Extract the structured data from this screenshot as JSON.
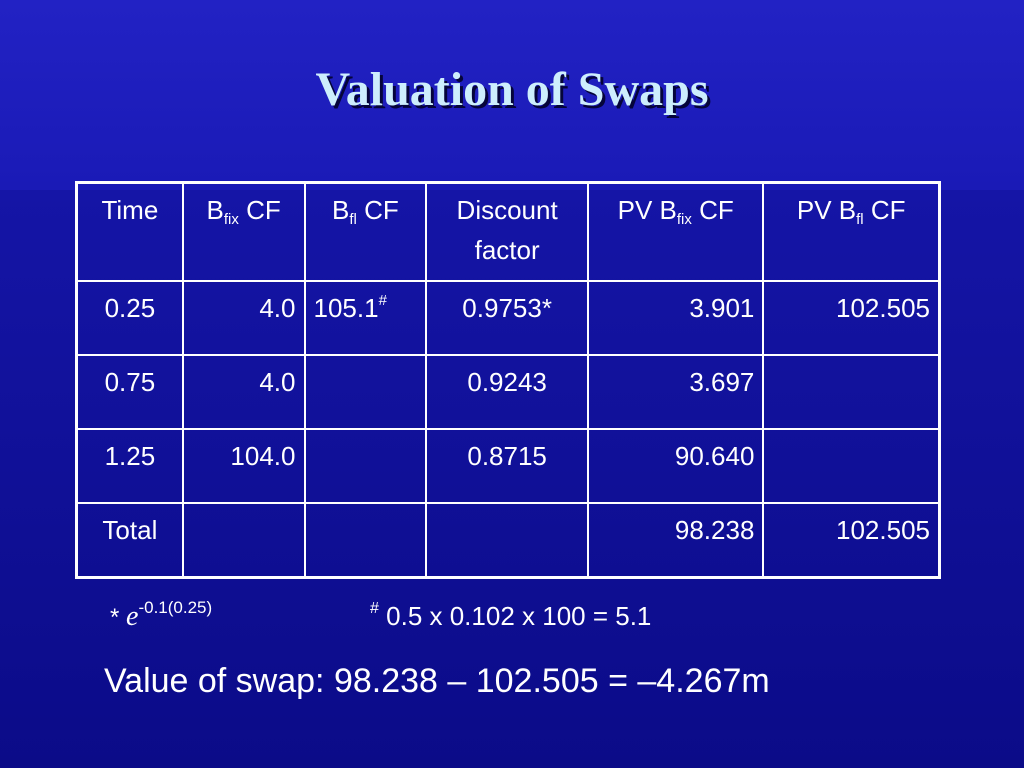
{
  "slide": {
    "title": "Valuation of Swaps",
    "table": {
      "headers": {
        "time": "Time",
        "bfix_main": "B",
        "bfix_sub": "fix",
        "bfix_tail": " CF",
        "bfl_main": "B",
        "bfl_sub": "fl",
        "bfl_tail": " CF",
        "discount_line1": "Discount",
        "discount_line2": "factor",
        "pvfix_main": "PV B",
        "pvfix_sub": "fix",
        "pvfix_tail": " CF",
        "pvfl_main": "PV B",
        "pvfl_sub": "fl",
        "pvfl_tail": " CF"
      },
      "rows": [
        {
          "time": "0.25",
          "bfix": "4.0",
          "bfl": "105.1",
          "bfl_note": "#",
          "discount": "0.9753*",
          "pvfix": "3.901",
          "pvfl": "102.505"
        },
        {
          "time": "0.75",
          "bfix": "4.0",
          "bfl": "",
          "bfl_note": "",
          "discount": "0.9243",
          "pvfix": "3.697",
          "pvfl": ""
        },
        {
          "time": "1.25",
          "bfix": "104.0",
          "bfl": "",
          "bfl_note": "",
          "discount": "0.8715",
          "pvfix": "90.640",
          "pvfl": ""
        },
        {
          "time": "Total",
          "bfix": "",
          "bfl": "",
          "bfl_note": "",
          "discount": "",
          "pvfix": "98.238",
          "pvfl": "102.505"
        }
      ]
    },
    "footnotes": {
      "star": "*",
      "e": "e",
      "exponent": "-0.1(0.25)",
      "hash": "#",
      "hash_text": " 0.5 x 0.102 x 100 = 5.1"
    },
    "value_line": "Value of swap:  98.238 – 102.505 = –4.267m"
  }
}
